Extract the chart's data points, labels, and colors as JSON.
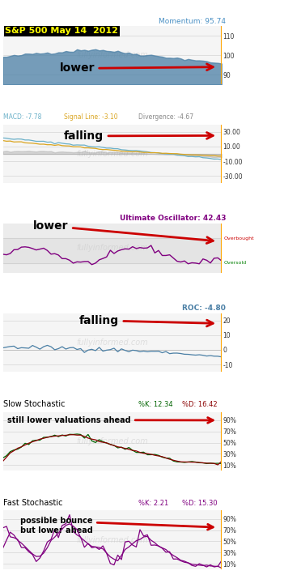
{
  "title": "S&P 500 May 14  2012",
  "momentum_label": "Momentum: 95.74",
  "macd_label": "MACD: -7.78",
  "signal_label": "Signal Line: -3.10",
  "divergence_label": "Divergence: -4.67",
  "uo_label": "Ultimate Oscillator: 42.43",
  "roc_label": "ROC: -4.80",
  "slow_k_label": "%K: 12.34",
  "slow_d_label": "%D: 16.42",
  "fast_k_label": "%K: 2.21",
  "fast_d_label": "%D: 15.30",
  "bg_color": "#ffffff",
  "panel_bg": "#f5f5f5",
  "orange_line": "#FFA500",
  "momentum_color": "#4a7fa5",
  "macd_color": "#6ab0c8",
  "signal_color": "#DAA520",
  "divergence_color": "#999999",
  "uo_color": "#800080",
  "roc_color": "#4a7fa5",
  "slow_k_color": "#006400",
  "slow_d_color": "#8B0000",
  "fast_k_color": "#800080",
  "fast_d_color": "#800080",
  "arrow_color": "#cc0000",
  "overbought_color": "#cc0000",
  "oversold_color": "#008000",
  "title_bg": "#000000",
  "title_text": "#ffff00",
  "macd_text_color": "#6ab0c8",
  "signal_text_color": "#DAA520",
  "divergence_text_color": "#888888",
  "uo_text_color": "#800080",
  "roc_text_color": "#4a7fa5",
  "slow_k_text_color": "#006400",
  "slow_d_text_color": "#8B0000",
  "fast_k_text_color": "#800080",
  "fast_d_text_color": "#800080"
}
